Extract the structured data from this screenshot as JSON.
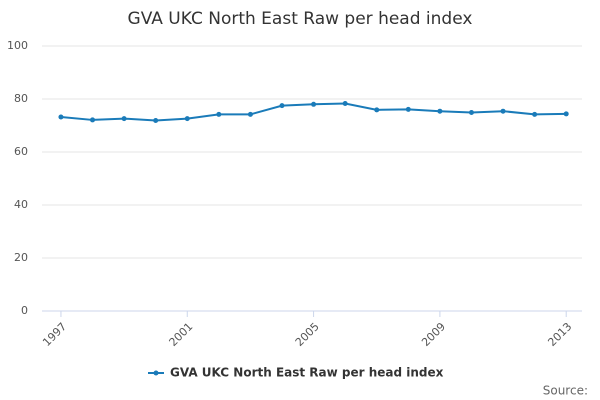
{
  "chart_data": {
    "type": "line",
    "title": "GVA UKC North East Raw per head index",
    "x": [
      1997,
      1998,
      1999,
      2000,
      2001,
      2002,
      2003,
      2004,
      2005,
      2006,
      2007,
      2008,
      2009,
      2010,
      2011,
      2012,
      2013
    ],
    "series": [
      {
        "name": "GVA UKC North East Raw per head index",
        "color": "#1a7bb9",
        "values": [
          73.2,
          72.1,
          72.6,
          71.9,
          72.6,
          74.2,
          74.2,
          77.5,
          78.0,
          78.3,
          75.9,
          76.1,
          75.4,
          74.9,
          75.4,
          74.2,
          74.4
        ]
      }
    ],
    "xlim": [
      1996.4,
      2013.5
    ],
    "xticks": [
      1997,
      2001,
      2005,
      2009,
      2013
    ],
    "ylim": [
      0,
      100
    ],
    "yticks": [
      0,
      20,
      40,
      60,
      80,
      100
    ],
    "grid": true,
    "source": "Source:"
  }
}
